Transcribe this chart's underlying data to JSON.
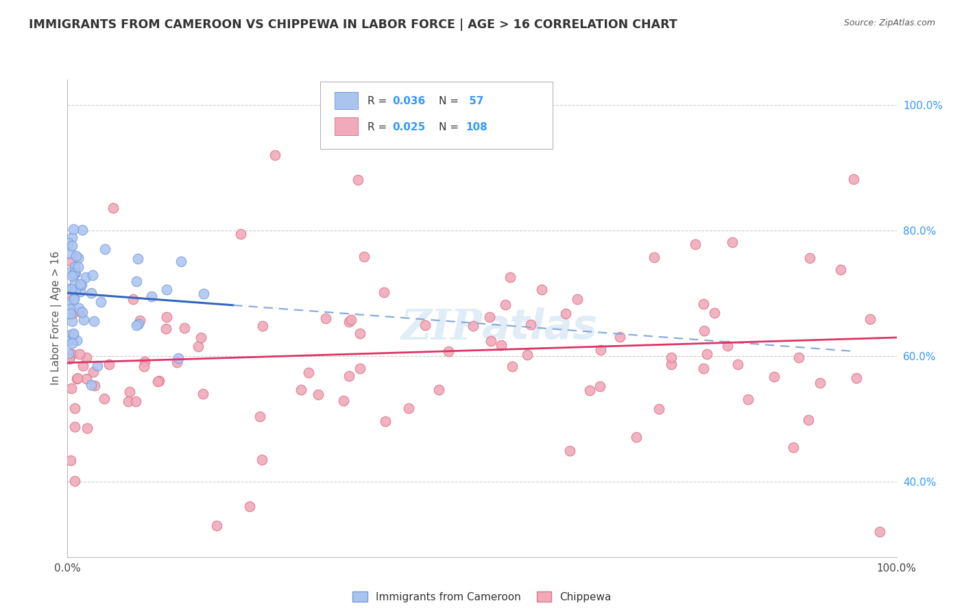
{
  "title": "IMMIGRANTS FROM CAMEROON VS CHIPPEWA IN LABOR FORCE | AGE > 16 CORRELATION CHART",
  "source_text": "Source: ZipAtlas.com",
  "ylabel": "In Labor Force | Age > 16",
  "xlim": [
    0.0,
    1.0
  ],
  "ylim": [
    0.28,
    1.04
  ],
  "x_tick_labels": [
    "0.0%",
    "100.0%"
  ],
  "x_tick_pos": [
    0.0,
    1.0
  ],
  "y_tick_labels_right": [
    "40.0%",
    "60.0%",
    "80.0%",
    "100.0%"
  ],
  "y_tick_values_right": [
    0.4,
    0.6,
    0.8,
    1.0
  ],
  "watermark": "ZIPatlas",
  "background_color": "#ffffff",
  "plot_bg_color": "#ffffff",
  "grid_color": "#cccccc",
  "cameroon_color": "#aac4f0",
  "chippewa_color": "#f0aabb",
  "cameroon_edge": "#7799dd",
  "chippewa_edge": "#dd7788",
  "legend_label_1": "Immigrants from Cameroon",
  "legend_label_2": "Chippewa",
  "cam_trend_color": "#3366bb",
  "chip_trend_color": "#dd3366",
  "cam_dashed_color": "#88aadd",
  "cam_trend_solid_end": 0.2
}
